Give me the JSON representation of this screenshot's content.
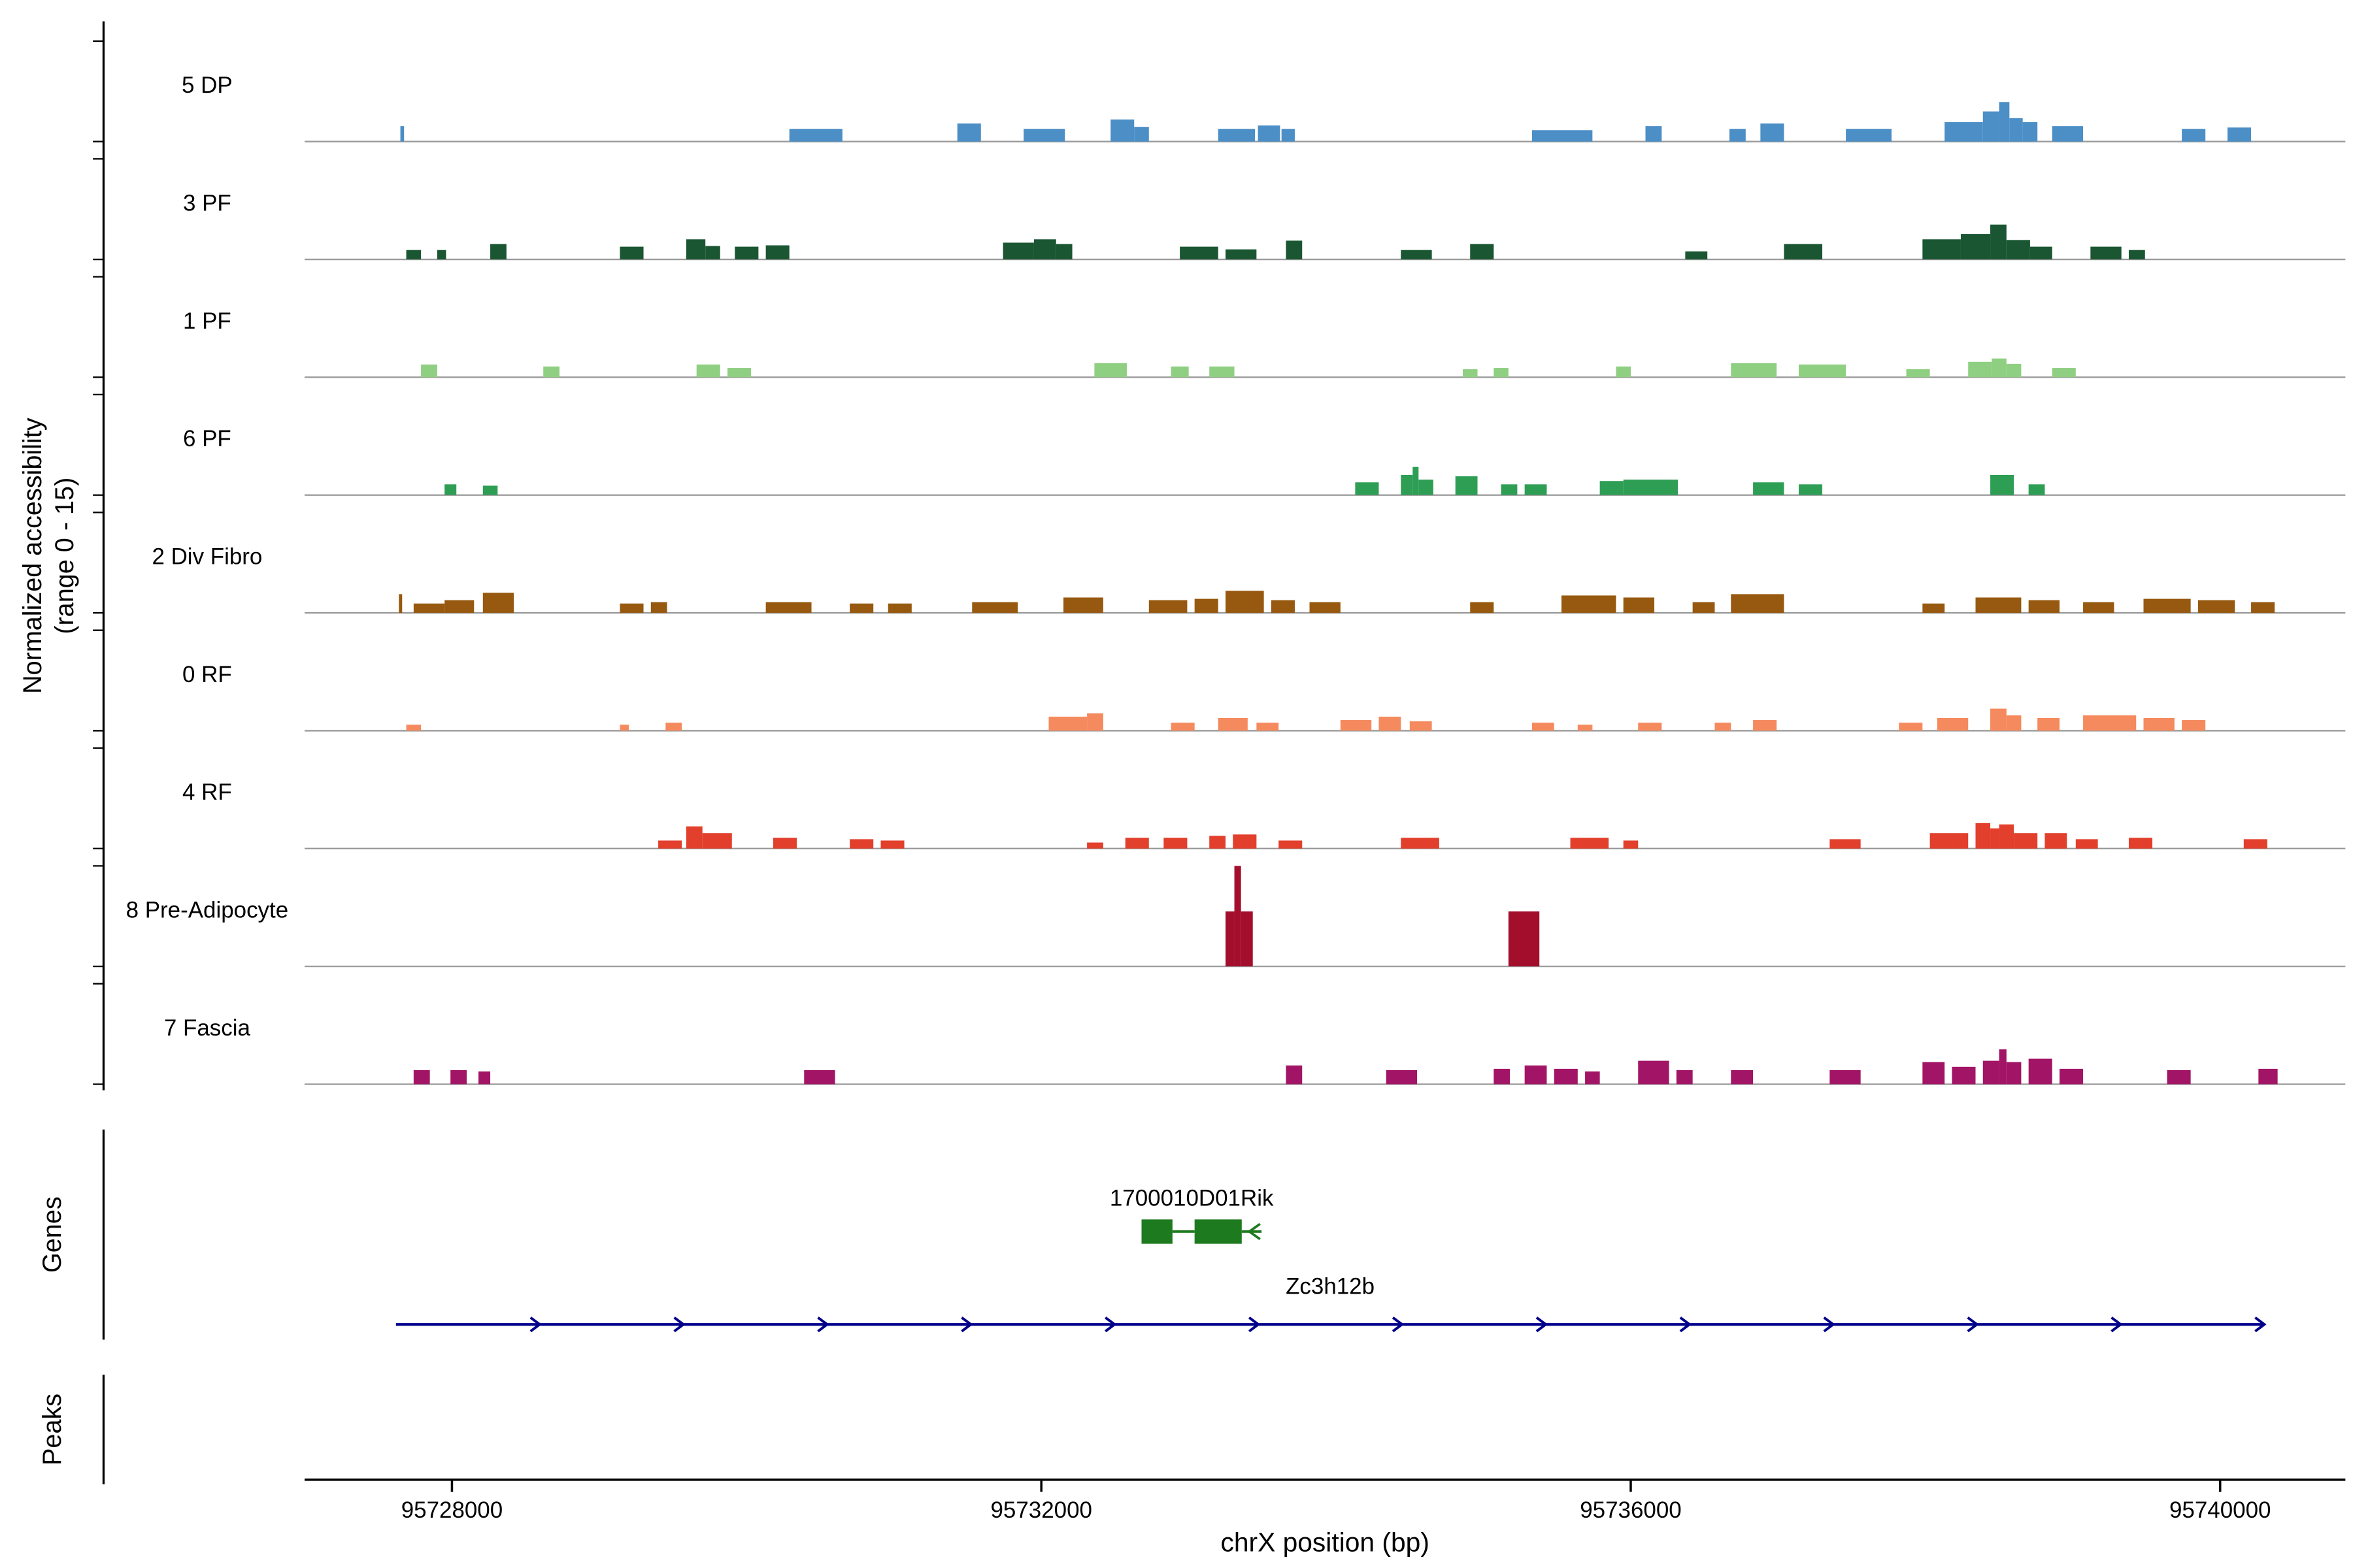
{
  "figure": {
    "y_axis_label_line1": "Normalized accessibility",
    "y_axis_label_line2": "(range 0 - 15)",
    "x_axis_label": "chrX position (bp)",
    "genes_panel_label": "Genes",
    "peaks_panel_label": "Peaks"
  },
  "chart_data": {
    "type": "area",
    "title": "",
    "xlabel": "chrX position (bp)",
    "ylabel": "Normalized accessibility (range 0 - 15)",
    "xlim": [
      95727000,
      95740850
    ],
    "value_range": [
      0,
      15
    ],
    "x_ticks": [
      95728000,
      95732000,
      95736000,
      95740000
    ],
    "x_tick_labels": [
      "95728000",
      "95732000",
      "95736000",
      "95740000"
    ],
    "grid": false,
    "baseline_color": "#9A9A9A",
    "tracks": [
      {
        "label": "5 DP",
        "color": "#4C8EC6",
        "segments": [
          [
            95727650,
            95727675,
            2.3
          ],
          [
            95730290,
            95730650,
            1.9
          ],
          [
            95731430,
            95731590,
            2.7
          ],
          [
            95731880,
            95732160,
            1.9
          ],
          [
            95732470,
            95732630,
            3.3
          ],
          [
            95732630,
            95732730,
            2.2
          ],
          [
            95733200,
            95733450,
            1.9
          ],
          [
            95733470,
            95733620,
            2.4
          ],
          [
            95733630,
            95733720,
            1.9
          ],
          [
            95735330,
            95735740,
            1.7
          ],
          [
            95736100,
            95736210,
            2.3
          ],
          [
            95736670,
            95736780,
            1.9
          ],
          [
            95736880,
            95737040,
            2.7
          ],
          [
            95737460,
            95737770,
            1.9
          ],
          [
            95738130,
            95738390,
            2.9
          ],
          [
            95738390,
            95738500,
            4.5
          ],
          [
            95738500,
            95738570,
            5.9
          ],
          [
            95738570,
            95738660,
            3.5
          ],
          [
            95738660,
            95738760,
            2.9
          ],
          [
            95738860,
            95739070,
            2.3
          ],
          [
            95739740,
            95739900,
            1.9
          ],
          [
            95740050,
            95740210,
            2.1
          ]
        ]
      },
      {
        "label": "3 PF",
        "color": "#1A5632",
        "segments": [
          [
            95727690,
            95727790,
            1.4
          ],
          [
            95727900,
            95727960,
            1.4
          ],
          [
            95728260,
            95728370,
            2.3
          ],
          [
            95729140,
            95729300,
            1.9
          ],
          [
            95729590,
            95729720,
            3.0
          ],
          [
            95729720,
            95729820,
            2.0
          ],
          [
            95729920,
            95730080,
            1.9
          ],
          [
            95730130,
            95730290,
            2.1
          ],
          [
            95731740,
            95731950,
            2.5
          ],
          [
            95731950,
            95732100,
            3.0
          ],
          [
            95732100,
            95732210,
            2.3
          ],
          [
            95732940,
            95733200,
            1.9
          ],
          [
            95733250,
            95733460,
            1.5
          ],
          [
            95733660,
            95733770,
            2.8
          ],
          [
            95734440,
            95734650,
            1.4
          ],
          [
            95734910,
            95735070,
            2.3
          ],
          [
            95736370,
            95736520,
            1.2
          ],
          [
            95737040,
            95737300,
            2.3
          ],
          [
            95737980,
            95738240,
            3.0
          ],
          [
            95738240,
            95738440,
            3.8
          ],
          [
            95738440,
            95738550,
            5.2
          ],
          [
            95738550,
            95738710,
            2.9
          ],
          [
            95738710,
            95738860,
            1.9
          ],
          [
            95739120,
            95739330,
            1.9
          ],
          [
            95739380,
            95739490,
            1.4
          ]
        ]
      },
      {
        "label": "1 PF",
        "color": "#8FCF82",
        "segments": [
          [
            95727790,
            95727900,
            1.9
          ],
          [
            95728620,
            95728730,
            1.6
          ],
          [
            95729660,
            95729820,
            1.9
          ],
          [
            95729870,
            95730030,
            1.4
          ],
          [
            95732360,
            95732580,
            2.1
          ],
          [
            95732880,
            95733000,
            1.6
          ],
          [
            95733140,
            95733310,
            1.6
          ],
          [
            95734860,
            95734960,
            1.2
          ],
          [
            95735070,
            95735170,
            1.4
          ],
          [
            95735900,
            95736000,
            1.6
          ],
          [
            95736680,
            95736990,
            2.1
          ],
          [
            95737140,
            95737460,
            1.9
          ],
          [
            95737870,
            95738030,
            1.2
          ],
          [
            95738290,
            95738450,
            2.3
          ],
          [
            95738450,
            95738550,
            2.8
          ],
          [
            95738550,
            95738650,
            2.0
          ],
          [
            95738860,
            95739020,
            1.4
          ]
        ]
      },
      {
        "label": "6 PF",
        "color": "#2E9E55",
        "segments": [
          [
            95727950,
            95728030,
            1.6
          ],
          [
            95728210,
            95728310,
            1.4
          ],
          [
            95734130,
            95734290,
            1.9
          ],
          [
            95734440,
            95734520,
            3.0
          ],
          [
            95734520,
            95734560,
            4.2
          ],
          [
            95734560,
            95734660,
            2.3
          ],
          [
            95734810,
            95734960,
            2.8
          ],
          [
            95735120,
            95735230,
            1.6
          ],
          [
            95735280,
            95735430,
            1.6
          ],
          [
            95735790,
            95735950,
            2.1
          ],
          [
            95735950,
            95736320,
            2.3
          ],
          [
            95736830,
            95737040,
            1.9
          ],
          [
            95737140,
            95737300,
            1.6
          ],
          [
            95738440,
            95738600,
            3.0
          ],
          [
            95738700,
            95738810,
            1.6
          ]
        ]
      },
      {
        "label": "2 Div Fibro",
        "color": "#96590F",
        "segments": [
          [
            95727640,
            95727662,
            2.8
          ],
          [
            95727740,
            95727950,
            1.4
          ],
          [
            95727950,
            95728150,
            1.9
          ],
          [
            95728210,
            95728420,
            3.0
          ],
          [
            95729140,
            95729300,
            1.4
          ],
          [
            95729350,
            95729460,
            1.6
          ],
          [
            95730130,
            95730440,
            1.6
          ],
          [
            95730700,
            95730860,
            1.4
          ],
          [
            95730960,
            95731120,
            1.4
          ],
          [
            95731530,
            95731840,
            1.6
          ],
          [
            95732150,
            95732420,
            2.3
          ],
          [
            95732730,
            95732990,
            1.9
          ],
          [
            95733040,
            95733200,
            2.1
          ],
          [
            95733250,
            95733510,
            3.3
          ],
          [
            95733560,
            95733720,
            1.9
          ],
          [
            95733820,
            95734030,
            1.6
          ],
          [
            95734910,
            95735070,
            1.6
          ],
          [
            95735530,
            95735900,
            2.6
          ],
          [
            95735950,
            95736160,
            2.3
          ],
          [
            95736420,
            95736570,
            1.6
          ],
          [
            95736680,
            95737040,
            2.8
          ],
          [
            95737980,
            95738130,
            1.4
          ],
          [
            95738340,
            95738650,
            2.3
          ],
          [
            95738700,
            95738910,
            1.9
          ],
          [
            95739070,
            95739280,
            1.6
          ],
          [
            95739480,
            95739800,
            2.1
          ],
          [
            95739850,
            95740100,
            1.9
          ],
          [
            95740210,
            95740370,
            1.6
          ]
        ]
      },
      {
        "label": "0 RF",
        "color": "#F58A5F",
        "segments": [
          [
            95727690,
            95727790,
            0.9
          ],
          [
            95729140,
            95729200,
            0.9
          ],
          [
            95729450,
            95729560,
            1.2
          ],
          [
            95732050,
            95732310,
            2.1
          ],
          [
            95732310,
            95732420,
            2.6
          ],
          [
            95732880,
            95733040,
            1.2
          ],
          [
            95733200,
            95733400,
            1.9
          ],
          [
            95733460,
            95733610,
            1.2
          ],
          [
            95734030,
            95734240,
            1.6
          ],
          [
            95734290,
            95734440,
            2.1
          ],
          [
            95734500,
            95734650,
            1.4
          ],
          [
            95735330,
            95735480,
            1.2
          ],
          [
            95735640,
            95735740,
            0.9
          ],
          [
            95736050,
            95736210,
            1.2
          ],
          [
            95736570,
            95736680,
            1.2
          ],
          [
            95736830,
            95736990,
            1.6
          ],
          [
            95737820,
            95737980,
            1.2
          ],
          [
            95738080,
            95738290,
            1.9
          ],
          [
            95738440,
            95738550,
            3.3
          ],
          [
            95738550,
            95738650,
            2.3
          ],
          [
            95738760,
            95738910,
            1.9
          ],
          [
            95739070,
            95739430,
            2.3
          ],
          [
            95739480,
            95739690,
            1.9
          ],
          [
            95739740,
            95739900,
            1.6
          ]
        ]
      },
      {
        "label": "4 RF",
        "color": "#E23F2C",
        "segments": [
          [
            95729400,
            95729560,
            1.2
          ],
          [
            95729590,
            95729700,
            3.3
          ],
          [
            95729700,
            95729900,
            2.3
          ],
          [
            95730180,
            95730340,
            1.6
          ],
          [
            95730700,
            95730860,
            1.4
          ],
          [
            95730910,
            95731070,
            1.2
          ],
          [
            95732310,
            95732420,
            0.9
          ],
          [
            95732570,
            95732730,
            1.6
          ],
          [
            95732830,
            95732990,
            1.6
          ],
          [
            95733140,
            95733250,
            1.9
          ],
          [
            95733300,
            95733460,
            2.1
          ],
          [
            95733610,
            95733770,
            1.2
          ],
          [
            95734440,
            95734700,
            1.6
          ],
          [
            95735590,
            95735850,
            1.6
          ],
          [
            95735950,
            95736050,
            1.2
          ],
          [
            95737350,
            95737560,
            1.4
          ],
          [
            95738030,
            95738290,
            2.3
          ],
          [
            95738340,
            95738440,
            3.8
          ],
          [
            95738440,
            95738500,
            3.0
          ],
          [
            95738500,
            95738600,
            3.6
          ],
          [
            95738600,
            95738760,
            2.3
          ],
          [
            95738810,
            95738960,
            2.3
          ],
          [
            95739020,
            95739170,
            1.4
          ],
          [
            95739380,
            95739540,
            1.6
          ],
          [
            95740160,
            95740320,
            1.4
          ]
        ]
      },
      {
        "label": "8 Pre-Adipocyte",
        "color": "#A40E2D",
        "segments": [
          [
            95733250,
            95733310,
            8.2
          ],
          [
            95733310,
            95733355,
            15.0
          ],
          [
            95733355,
            95733435,
            8.2
          ],
          [
            95735170,
            95735380,
            8.2
          ]
        ]
      },
      {
        "label": "7 Fascia",
        "color": "#A21566",
        "segments": [
          [
            95727740,
            95727850,
            2.1
          ],
          [
            95727990,
            95728100,
            2.1
          ],
          [
            95728180,
            95728260,
            1.9
          ],
          [
            95730390,
            95730600,
            2.1
          ],
          [
            95733660,
            95733770,
            2.8
          ],
          [
            95734340,
            95734550,
            2.1
          ],
          [
            95735070,
            95735180,
            2.3
          ],
          [
            95735280,
            95735430,
            2.8
          ],
          [
            95735480,
            95735640,
            2.3
          ],
          [
            95735690,
            95735790,
            1.9
          ],
          [
            95736050,
            95736260,
            3.5
          ],
          [
            95736310,
            95736420,
            2.1
          ],
          [
            95736680,
            95736830,
            2.1
          ],
          [
            95737350,
            95737560,
            2.1
          ],
          [
            95737980,
            95738130,
            3.3
          ],
          [
            95738180,
            95738340,
            2.6
          ],
          [
            95738390,
            95738500,
            3.5
          ],
          [
            95738500,
            95738550,
            5.2
          ],
          [
            95738550,
            95738650,
            3.3
          ],
          [
            95738700,
            95738860,
            3.8
          ],
          [
            95738910,
            95739070,
            2.3
          ],
          [
            95739640,
            95739800,
            2.1
          ],
          [
            95740260,
            95740390,
            2.3
          ]
        ]
      }
    ],
    "genes": [
      {
        "name": "1700010D01Rik",
        "color": "#1E7A1E",
        "strand": "-",
        "start": 95732680,
        "end": 95733360,
        "exons": [
          [
            95732680,
            95732890
          ],
          [
            95733040,
            95733360
          ]
        ]
      },
      {
        "name": "Zc3h12b",
        "color": "#00008B",
        "strand": "+",
        "start": 95727620,
        "end": 95740300,
        "exons": []
      }
    ],
    "peaks": []
  }
}
